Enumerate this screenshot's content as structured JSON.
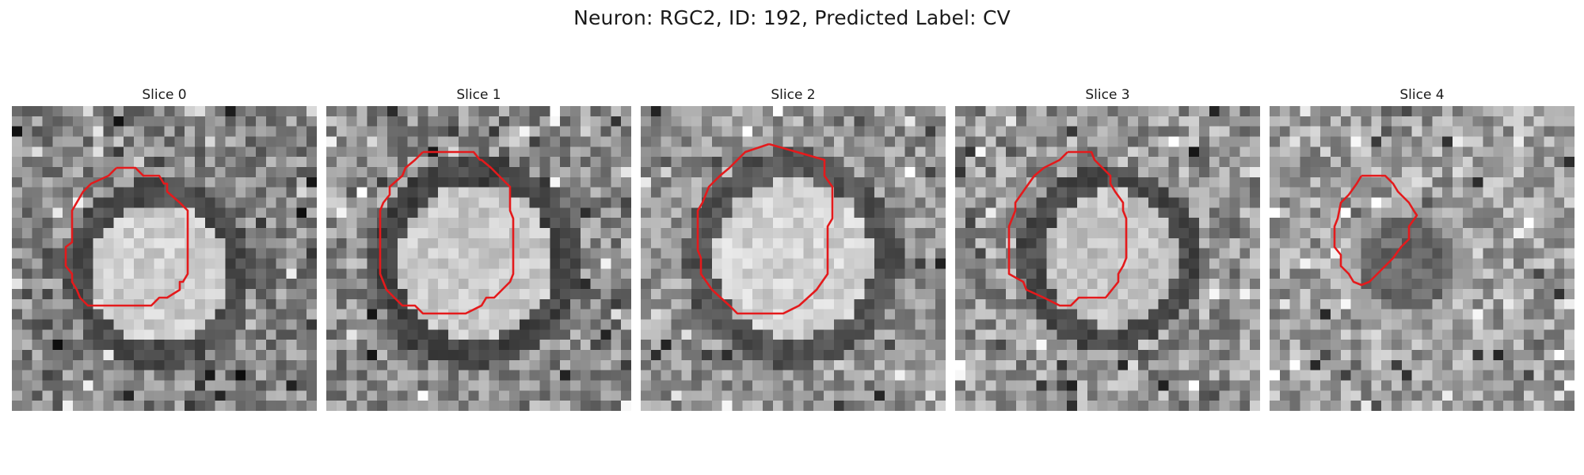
{
  "figure": {
    "title": "Neuron: RGC2, ID: 192, Predicted Label: CV"
  },
  "panels": [
    {
      "title": "Slice 0",
      "contour_color": "#e41a1c"
    },
    {
      "title": "Slice 1",
      "contour_color": "#e41a1c"
    },
    {
      "title": "Slice 2",
      "contour_color": "#e41a1c"
    },
    {
      "title": "Slice 3",
      "contour_color": "#e41a1c"
    },
    {
      "title": "Slice 4",
      "contour_color": "#e41a1c"
    }
  ]
}
